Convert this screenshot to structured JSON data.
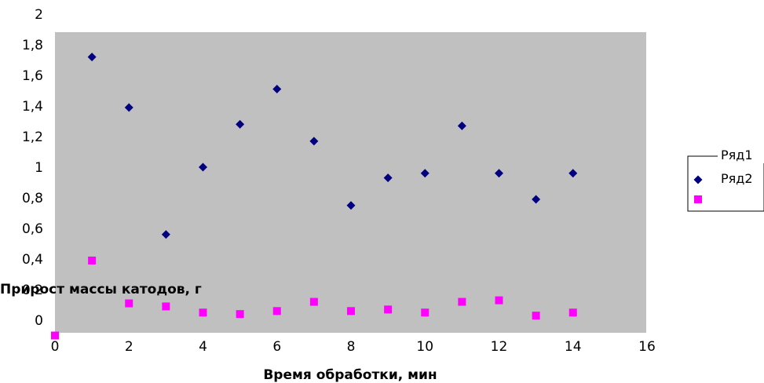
{
  "chart_data": {
    "type": "scatter",
    "title": "",
    "xlabel": "Время обработки, мин",
    "ylabel": "Прирост массы катодов, г",
    "xlim": [
      0,
      16
    ],
    "ylim": [
      0,
      2
    ],
    "x_ticks": [
      "0",
      "2",
      "4",
      "6",
      "8",
      "10",
      "12",
      "14",
      "16"
    ],
    "y_ticks": [
      "0",
      "0,2",
      "0,4",
      "0,6",
      "0,8",
      "1",
      "1,2",
      "1,4",
      "1,6",
      "1,8",
      "2"
    ],
    "grid": false,
    "plot_background": "#c0c0c0",
    "legend_position": "right",
    "series": [
      {
        "name": "Ряд1",
        "marker": "diamond",
        "color": "#000080",
        "points": [
          [
            1,
            1.72
          ],
          [
            2,
            1.39
          ],
          [
            3,
            0.56
          ],
          [
            4,
            1.0
          ],
          [
            5,
            1.28
          ],
          [
            6,
            1.51
          ],
          [
            7,
            1.17
          ],
          [
            8,
            0.75
          ],
          [
            9,
            0.93
          ],
          [
            10,
            0.96
          ],
          [
            11,
            1.27
          ],
          [
            12,
            0.96
          ],
          [
            13,
            0.79
          ],
          [
            14,
            0.96
          ]
        ]
      },
      {
        "name": "Ряд2",
        "marker": "square",
        "color": "#ff00ff",
        "points": [
          [
            0,
            -0.1
          ],
          [
            1,
            0.39
          ],
          [
            2,
            0.11
          ],
          [
            3,
            0.09
          ],
          [
            4,
            0.05
          ],
          [
            5,
            0.04
          ],
          [
            6,
            0.06
          ],
          [
            7,
            0.12
          ],
          [
            8,
            0.06
          ],
          [
            9,
            0.07
          ],
          [
            10,
            0.05
          ],
          [
            11,
            0.12
          ],
          [
            12,
            0.13
          ],
          [
            13,
            0.03
          ],
          [
            14,
            0.05
          ]
        ]
      }
    ]
  }
}
